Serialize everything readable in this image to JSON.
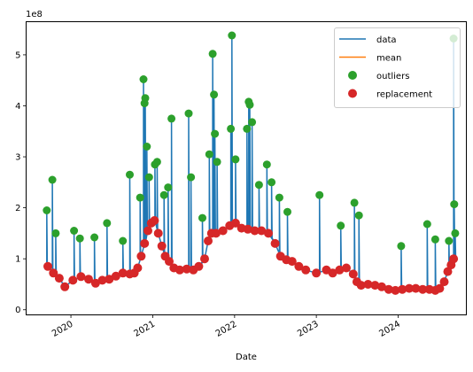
{
  "chart_data": {
    "type": "line",
    "xlabel": "Date",
    "ylabel": "",
    "scale_text": "1e8",
    "ylim": [
      -0.1,
      5.65
    ],
    "xlim": [
      "2019-06-15",
      "2024-11-01"
    ],
    "grid": false,
    "legend_position": "top-right",
    "x_ticks": [
      {
        "date": "2020-01-01",
        "label": "2020"
      },
      {
        "date": "2021-01-01",
        "label": "2021"
      },
      {
        "date": "2022-01-01",
        "label": "2022"
      },
      {
        "date": "2023-01-01",
        "label": "2023"
      },
      {
        "date": "2024-01-01",
        "label": "2024"
      }
    ],
    "y_ticks": [
      {
        "value": 0,
        "label": "0"
      },
      {
        "value": 1,
        "label": "1"
      },
      {
        "value": 2,
        "label": "2"
      },
      {
        "value": 3,
        "label": "3"
      },
      {
        "value": 4,
        "label": "4"
      },
      {
        "value": 5,
        "label": "5"
      }
    ],
    "colors": {
      "data": "#1f77b4",
      "mean": "#ff7f0e",
      "outliers": "#2ca02c",
      "replacement": "#d62728"
    },
    "legend": [
      {
        "label": "data",
        "marker": "line",
        "color": "#1f77b4"
      },
      {
        "label": "mean",
        "marker": "line",
        "color": "#ff7f0e"
      },
      {
        "label": "outliers",
        "marker": "dot",
        "color": "#2ca02c"
      },
      {
        "label": "replacement",
        "marker": "dot",
        "color": "#d62728"
      }
    ],
    "series": [
      {
        "name": "replacement",
        "points": [
          [
            "2019-09-20",
            0.85
          ],
          [
            "2019-10-15",
            0.72
          ],
          [
            "2019-11-10",
            0.62
          ],
          [
            "2019-12-05",
            0.45
          ],
          [
            "2020-01-10",
            0.58
          ],
          [
            "2020-02-15",
            0.65
          ],
          [
            "2020-03-20",
            0.6
          ],
          [
            "2020-04-20",
            0.52
          ],
          [
            "2020-05-20",
            0.58
          ],
          [
            "2020-06-20",
            0.6
          ],
          [
            "2020-07-20",
            0.66
          ],
          [
            "2020-08-20",
            0.72
          ],
          [
            "2020-09-20",
            0.7
          ],
          [
            "2020-10-10",
            0.72
          ],
          [
            "2020-10-25",
            0.82
          ],
          [
            "2020-11-10",
            1.05
          ],
          [
            "2020-11-25",
            1.3
          ],
          [
            "2020-12-10",
            1.55
          ],
          [
            "2020-12-25",
            1.7
          ],
          [
            "2021-01-08",
            1.75
          ],
          [
            "2021-01-25",
            1.5
          ],
          [
            "2021-02-10",
            1.25
          ],
          [
            "2021-02-25",
            1.05
          ],
          [
            "2021-03-15",
            0.95
          ],
          [
            "2021-04-05",
            0.82
          ],
          [
            "2021-05-01",
            0.78
          ],
          [
            "2021-06-01",
            0.8
          ],
          [
            "2021-07-01",
            0.78
          ],
          [
            "2021-07-25",
            0.85
          ],
          [
            "2021-08-20",
            1.0
          ],
          [
            "2021-09-05",
            1.35
          ],
          [
            "2021-09-20",
            1.5
          ],
          [
            "2021-10-10",
            1.5
          ],
          [
            "2021-11-10",
            1.55
          ],
          [
            "2021-12-10",
            1.65
          ],
          [
            "2022-01-05",
            1.7
          ],
          [
            "2022-02-01",
            1.6
          ],
          [
            "2022-03-01",
            1.58
          ],
          [
            "2022-04-01",
            1.55
          ],
          [
            "2022-05-01",
            1.55
          ],
          [
            "2022-06-01",
            1.5
          ],
          [
            "2022-07-01",
            1.3
          ],
          [
            "2022-07-25",
            1.05
          ],
          [
            "2022-08-20",
            0.98
          ],
          [
            "2022-09-15",
            0.95
          ],
          [
            "2022-10-15",
            0.85
          ],
          [
            "2022-11-15",
            0.78
          ],
          [
            "2023-01-01",
            0.72
          ],
          [
            "2023-02-15",
            0.78
          ],
          [
            "2023-03-15",
            0.72
          ],
          [
            "2023-04-15",
            0.78
          ],
          [
            "2023-05-15",
            0.82
          ],
          [
            "2023-06-15",
            0.7
          ],
          [
            "2023-07-01",
            0.55
          ],
          [
            "2023-07-20",
            0.48
          ],
          [
            "2023-08-20",
            0.5
          ],
          [
            "2023-09-20",
            0.48
          ],
          [
            "2023-10-20",
            0.45
          ],
          [
            "2023-11-20",
            0.4
          ],
          [
            "2023-12-20",
            0.38
          ],
          [
            "2024-01-20",
            0.4
          ],
          [
            "2024-02-20",
            0.42
          ],
          [
            "2024-03-20",
            0.42
          ],
          [
            "2024-04-20",
            0.4
          ],
          [
            "2024-05-20",
            0.4
          ],
          [
            "2024-06-15",
            0.38
          ],
          [
            "2024-07-05",
            0.42
          ],
          [
            "2024-07-25",
            0.55
          ],
          [
            "2024-08-10",
            0.75
          ],
          [
            "2024-08-25",
            0.88
          ],
          [
            "2024-09-05",
            1.0
          ]
        ]
      },
      {
        "name": "outliers",
        "points": [
          [
            "2019-09-15",
            1.95
          ],
          [
            "2019-10-10",
            2.55
          ],
          [
            "2019-10-25",
            1.5
          ],
          [
            "2020-01-15",
            1.55
          ],
          [
            "2020-02-10",
            1.4
          ],
          [
            "2020-04-15",
            1.42
          ],
          [
            "2020-06-10",
            1.7
          ],
          [
            "2020-08-20",
            1.35
          ],
          [
            "2020-09-20",
            2.65
          ],
          [
            "2020-11-05",
            2.2
          ],
          [
            "2020-11-20",
            4.52
          ],
          [
            "2020-11-25",
            4.05
          ],
          [
            "2020-11-28",
            4.15
          ],
          [
            "2020-12-05",
            3.2
          ],
          [
            "2020-12-15",
            2.6
          ],
          [
            "2021-01-10",
            2.85
          ],
          [
            "2021-01-20",
            2.9
          ],
          [
            "2021-02-20",
            2.25
          ],
          [
            "2021-03-10",
            2.4
          ],
          [
            "2021-03-25",
            3.75
          ],
          [
            "2021-06-10",
            3.85
          ],
          [
            "2021-06-20",
            2.6
          ],
          [
            "2021-08-10",
            1.8
          ],
          [
            "2021-09-10",
            3.05
          ],
          [
            "2021-09-25",
            5.02
          ],
          [
            "2021-10-01",
            4.22
          ],
          [
            "2021-10-05",
            3.45
          ],
          [
            "2021-10-15",
            2.9
          ],
          [
            "2021-12-15",
            3.55
          ],
          [
            "2021-12-20",
            5.38
          ],
          [
            "2022-01-05",
            2.95
          ],
          [
            "2022-02-25",
            3.55
          ],
          [
            "2022-03-05",
            4.08
          ],
          [
            "2022-03-10",
            4.02
          ],
          [
            "2022-03-20",
            3.68
          ],
          [
            "2022-04-20",
            2.45
          ],
          [
            "2022-05-25",
            2.85
          ],
          [
            "2022-06-15",
            2.5
          ],
          [
            "2022-07-20",
            2.2
          ],
          [
            "2022-08-25",
            1.92
          ],
          [
            "2023-01-15",
            2.25
          ],
          [
            "2023-04-20",
            1.65
          ],
          [
            "2023-06-20",
            2.1
          ],
          [
            "2023-07-10",
            1.85
          ],
          [
            "2024-01-15",
            1.25
          ],
          [
            "2024-05-10",
            1.68
          ],
          [
            "2024-06-15",
            1.38
          ],
          [
            "2024-08-15",
            1.35
          ],
          [
            "2024-09-05",
            5.32
          ],
          [
            "2024-09-08",
            2.07
          ],
          [
            "2024-09-12",
            1.5
          ]
        ]
      }
    ]
  }
}
